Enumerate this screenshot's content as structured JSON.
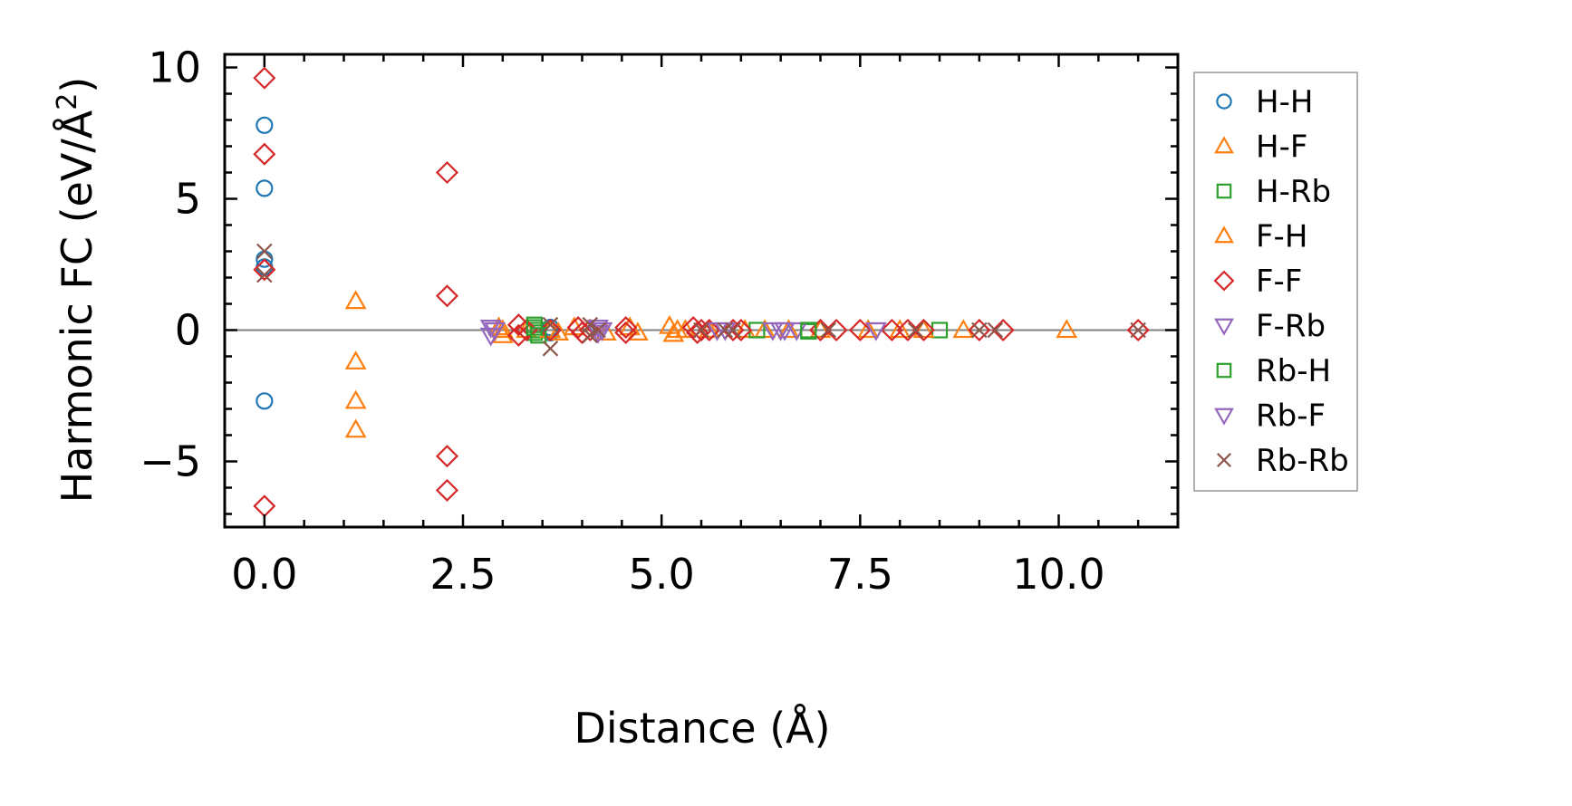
{
  "chart_data": {
    "type": "scatter",
    "xlabel": "Distance (Å)",
    "ylabel_main": "Harmonic FC (eV/Å",
    "ylabel_sup": "2",
    "ylabel_end": ")",
    "xlim": [
      -0.5,
      11.5
    ],
    "ylim": [
      -7.5,
      10.5
    ],
    "xticks": [
      0.0,
      2.5,
      5.0,
      7.5,
      10.0
    ],
    "xtick_labels": [
      "0.0",
      "2.5",
      "5.0",
      "7.5",
      "10.0"
    ],
    "yticks": [
      -5,
      0,
      5,
      10
    ],
    "ytick_labels": [
      "−5",
      "0",
      "5",
      "10"
    ],
    "zero_line": true,
    "legend_position": "right-outside",
    "series": [
      {
        "name": "H-H",
        "marker": "circle",
        "color": "#1f77b4",
        "points": [
          [
            0,
            7.8
          ],
          [
            0,
            5.4
          ],
          [
            0,
            2.7
          ],
          [
            0,
            2.4
          ],
          [
            0,
            -2.7
          ],
          [
            3.6,
            0.1
          ],
          [
            3.6,
            -0.1
          ]
        ]
      },
      {
        "name": "H-F",
        "marker": "triangle-up",
        "color": "#ff7f0e",
        "points": [
          [
            1.15,
            1.1
          ],
          [
            1.15,
            -1.2
          ],
          [
            1.15,
            -2.7
          ],
          [
            1.15,
            -3.8
          ],
          [
            2.95,
            0.1
          ],
          [
            3.0,
            -0.2
          ],
          [
            3.3,
            0.0
          ],
          [
            3.7,
            -0.1
          ],
          [
            3.9,
            0.1
          ],
          [
            4.3,
            -0.1
          ],
          [
            4.6,
            0.1
          ],
          [
            4.7,
            -0.1
          ],
          [
            5.1,
            0.15
          ],
          [
            5.15,
            -0.15
          ],
          [
            5.3,
            0.0
          ],
          [
            6.05,
            0.0
          ],
          [
            6.3,
            0.0
          ],
          [
            6.6,
            0.0
          ],
          [
            7.6,
            0.0
          ],
          [
            8.0,
            0.0
          ],
          [
            8.8,
            0.0
          ],
          [
            10.1,
            0.0
          ]
        ]
      },
      {
        "name": "H-Rb",
        "marker": "square",
        "color": "#2ca02c",
        "points": [
          [
            3.4,
            0.2
          ],
          [
            3.4,
            -0.1
          ],
          [
            3.45,
            0.0
          ],
          [
            6.2,
            0.0
          ],
          [
            6.85,
            -0.05
          ],
          [
            8.5,
            0.0
          ]
        ]
      },
      {
        "name": "F-H",
        "marker": "triangle-up",
        "color": "#ff7f0e",
        "points": [
          [
            3.0,
            0.0
          ],
          [
            3.6,
            0.0
          ],
          [
            5.2,
            0.0
          ],
          [
            5.6,
            0.0
          ],
          [
            7.0,
            0.0
          ],
          [
            8.3,
            0.0
          ]
        ]
      },
      {
        "name": "F-F",
        "marker": "diamond",
        "color": "#d62728",
        "points": [
          [
            0,
            9.6
          ],
          [
            0,
            6.7
          ],
          [
            0,
            2.3
          ],
          [
            0,
            -6.7
          ],
          [
            2.3,
            6.0
          ],
          [
            2.3,
            1.3
          ],
          [
            2.3,
            -4.8
          ],
          [
            2.3,
            -6.1
          ],
          [
            3.2,
            0.2
          ],
          [
            3.2,
            -0.2
          ],
          [
            3.3,
            0.0
          ],
          [
            3.6,
            0.0
          ],
          [
            3.95,
            0.1
          ],
          [
            4.0,
            -0.1
          ],
          [
            4.1,
            0.0
          ],
          [
            4.55,
            0.1
          ],
          [
            4.55,
            -0.1
          ],
          [
            5.4,
            0.1
          ],
          [
            5.45,
            -0.1
          ],
          [
            5.5,
            0.0
          ],
          [
            5.6,
            0.0
          ],
          [
            5.9,
            0.0
          ],
          [
            6.0,
            0.0
          ],
          [
            7.0,
            0.0
          ],
          [
            7.2,
            0.0
          ],
          [
            7.5,
            0.0
          ],
          [
            7.9,
            0.0
          ],
          [
            8.1,
            0.0
          ],
          [
            8.3,
            0.0
          ],
          [
            9.0,
            0.0
          ],
          [
            9.3,
            0.0
          ],
          [
            11.0,
            0.0
          ]
        ]
      },
      {
        "name": "F-Rb",
        "marker": "triangle-down",
        "color": "#9467bd",
        "points": [
          [
            2.85,
            0.1
          ],
          [
            2.85,
            -0.2
          ],
          [
            4.2,
            0.1
          ],
          [
            4.2,
            -0.1
          ],
          [
            5.7,
            0.0
          ],
          [
            6.4,
            0.0
          ],
          [
            6.55,
            0.0
          ],
          [
            6.7,
            0.0
          ],
          [
            7.7,
            0.0
          ]
        ]
      },
      {
        "name": "Rb-H",
        "marker": "square",
        "color": "#2ca02c",
        "points": [
          [
            3.4,
            0.1
          ],
          [
            3.45,
            -0.2
          ],
          [
            6.85,
            0.0
          ]
        ]
      },
      {
        "name": "Rb-F",
        "marker": "triangle-down",
        "color": "#9467bd",
        "points": [
          [
            2.9,
            0.0
          ],
          [
            4.25,
            0.0
          ],
          [
            5.8,
            0.0
          ],
          [
            6.5,
            0.0
          ]
        ]
      },
      {
        "name": "Rb-Rb",
        "marker": "x",
        "color": "#8c564b",
        "points": [
          [
            0,
            3.0
          ],
          [
            0,
            2.1
          ],
          [
            3.6,
            0.2
          ],
          [
            3.6,
            -0.7
          ],
          [
            4.1,
            0.2
          ],
          [
            4.1,
            -0.2
          ],
          [
            4.2,
            0.0
          ],
          [
            5.5,
            0.0
          ],
          [
            5.8,
            0.0
          ],
          [
            5.9,
            0.0
          ],
          [
            7.1,
            0.0
          ],
          [
            8.2,
            0.0
          ],
          [
            9.0,
            0.0
          ],
          [
            9.2,
            0.0
          ],
          [
            11.0,
            0.0
          ]
        ]
      }
    ]
  }
}
